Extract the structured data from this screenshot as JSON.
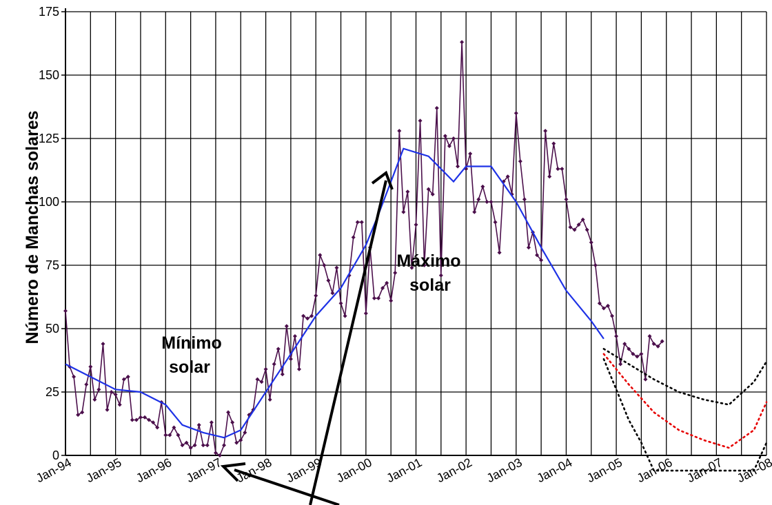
{
  "chart_data": {
    "type": "line",
    "ylabel": "Número de Manchas solares",
    "xlabel": "",
    "ylim": [
      0,
      175
    ],
    "yticks": [
      0,
      25,
      50,
      75,
      100,
      125,
      150,
      175
    ],
    "xlim": [
      "1994-01",
      "2008-01"
    ],
    "xtick_labels": [
      "Jan-94",
      "Jan-95",
      "Jan-96",
      "Jan-97",
      "Jan-98",
      "Jan-99",
      "Jan-00",
      "Jan-01",
      "Jan-02",
      "Jan-03",
      "Jan-04",
      "Jan-05",
      "Jan-06",
      "Jan-07",
      "Jan-08"
    ],
    "grid": true,
    "annotations": [
      {
        "lines": [
          "Mínimo",
          "solar"
        ]
      },
      {
        "lines": [
          "Máximo",
          "solar"
        ]
      }
    ],
    "series": [
      {
        "kind": "monthly",
        "color": "#4b0f4b",
        "x": [
          "1994-01",
          "1994-02",
          "1994-03",
          "1994-04",
          "1994-05",
          "1994-06",
          "1994-07",
          "1994-08",
          "1994-09",
          "1994-10",
          "1994-11",
          "1994-12",
          "1995-01",
          "1995-02",
          "1995-03",
          "1995-04",
          "1995-05",
          "1995-06",
          "1995-07",
          "1995-08",
          "1995-09",
          "1995-10",
          "1995-11",
          "1995-12",
          "1996-01",
          "1996-02",
          "1996-03",
          "1996-04",
          "1996-05",
          "1996-06",
          "1996-07",
          "1996-08",
          "1996-09",
          "1996-10",
          "1996-11",
          "1996-12",
          "1997-01",
          "1997-02",
          "1997-03",
          "1997-04",
          "1997-05",
          "1997-06",
          "1997-07",
          "1997-08",
          "1997-09",
          "1997-10",
          "1997-11",
          "1997-12",
          "1998-01",
          "1998-02",
          "1998-03",
          "1998-04",
          "1998-05",
          "1998-06",
          "1998-07",
          "1998-08",
          "1998-09",
          "1998-10",
          "1998-11",
          "1998-12",
          "1999-01",
          "1999-02",
          "1999-03",
          "1999-04",
          "1999-05",
          "1999-06",
          "1999-07",
          "1999-08",
          "1999-09",
          "1999-10",
          "1999-11",
          "1999-12",
          "2000-01",
          "2000-02",
          "2000-03",
          "2000-04",
          "2000-05",
          "2000-06",
          "2000-07",
          "2000-08",
          "2000-09",
          "2000-10",
          "2000-11",
          "2000-12",
          "2001-01",
          "2001-02",
          "2001-03",
          "2001-04",
          "2001-05",
          "2001-06",
          "2001-07",
          "2001-08",
          "2001-09",
          "2001-10",
          "2001-11",
          "2001-12",
          "2002-01",
          "2002-02",
          "2002-03",
          "2002-04",
          "2002-05",
          "2002-06",
          "2002-07",
          "2002-08",
          "2002-09",
          "2002-10",
          "2002-11",
          "2002-12",
          "2003-01",
          "2003-02",
          "2003-03",
          "2003-04",
          "2003-05",
          "2003-06",
          "2003-07",
          "2003-08",
          "2003-09",
          "2003-10",
          "2003-11",
          "2003-12",
          "2004-01",
          "2004-02",
          "2004-03",
          "2004-04",
          "2004-05",
          "2004-06",
          "2004-07",
          "2004-08",
          "2004-09",
          "2004-10",
          "2004-11",
          "2004-12",
          "2005-01",
          "2005-02",
          "2005-03",
          "2005-04",
          "2005-05",
          "2005-06",
          "2005-07",
          "2005-08",
          "2005-09",
          "2005-10",
          "2005-11",
          "2005-12"
        ],
        "values": [
          57,
          35,
          31,
          16,
          17,
          28,
          35,
          22,
          26,
          44,
          18,
          25,
          24,
          20,
          30,
          31,
          14,
          14,
          15,
          15,
          14,
          13,
          11,
          21,
          8,
          8,
          11,
          8,
          4,
          5,
          3,
          4,
          12,
          4,
          4,
          13,
          1,
          0,
          4,
          17,
          13,
          5,
          6,
          9,
          16,
          18,
          30,
          29,
          34,
          22,
          36,
          42,
          32,
          51,
          38,
          47,
          34,
          55,
          54,
          55,
          63,
          79,
          75,
          69,
          64,
          74,
          60,
          55,
          71,
          86,
          92,
          92,
          56,
          82,
          62,
          62,
          66,
          68,
          61,
          72,
          128,
          96,
          104,
          74,
          91,
          132,
          75,
          105,
          103,
          137,
          71,
          126,
          122,
          125,
          114,
          163,
          113,
          119,
          96,
          101,
          106,
          100,
          100,
          92,
          80,
          108,
          110,
          103,
          135,
          116,
          101,
          82,
          88,
          79,
          77,
          128,
          110,
          123,
          113,
          113,
          101,
          90,
          89,
          91,
          93,
          89,
          84,
          75,
          60,
          58,
          59,
          55,
          47,
          36,
          44,
          42,
          40,
          39,
          40,
          30,
          47,
          44,
          43,
          45
        ],
        "note": "monthly values read from the purple markers"
      },
      {
        "kind": "smoothed",
        "color": "#1e32e6",
        "x": [
          "1994-01",
          "1994-07",
          "1995-01",
          "1995-07",
          "1996-01",
          "1996-05",
          "1996-10",
          "1997-03",
          "1997-07",
          "1998-01",
          "1998-07",
          "1999-01",
          "1999-07",
          "2000-01",
          "2000-04",
          "2000-07",
          "2000-10",
          "2001-04",
          "2001-10",
          "2002-01",
          "2002-07",
          "2003-01",
          "2003-07",
          "2004-01",
          "2004-07",
          "2004-10"
        ],
        "values": [
          36,
          31,
          26,
          25,
          20,
          12,
          9,
          7,
          10,
          25,
          40,
          55,
          66,
          83,
          95,
          108,
          121,
          118,
          108,
          114,
          114,
          100,
          82,
          65,
          53,
          46
        ]
      },
      {
        "kind": "prediction-upper",
        "color": "#000000",
        "style": "dotted",
        "x": [
          "2004-10",
          "2005-04",
          "2005-10",
          "2006-04",
          "2006-10",
          "2007-04",
          "2007-10",
          "2008-01"
        ],
        "values": [
          42,
          36,
          30,
          25,
          22,
          20,
          29,
          37
        ]
      },
      {
        "kind": "prediction-mean",
        "color": "#e60000",
        "style": "dotted",
        "x": [
          "2004-10",
          "2005-04",
          "2005-10",
          "2006-04",
          "2006-10",
          "2007-04",
          "2007-10",
          "2008-01"
        ],
        "values": [
          40,
          28,
          17,
          10,
          6,
          3,
          10,
          21
        ]
      },
      {
        "kind": "prediction-lower",
        "color": "#000000",
        "style": "dotted",
        "x": [
          "2004-10",
          "2005-01",
          "2005-04",
          "2005-07",
          "2005-10",
          "2007-10",
          "2008-01"
        ],
        "values": [
          38,
          26,
          14,
          5,
          -6,
          -6,
          5
        ]
      }
    ]
  }
}
